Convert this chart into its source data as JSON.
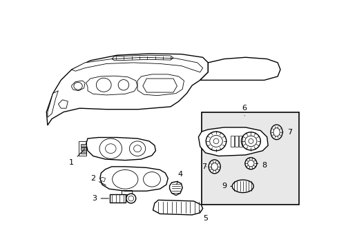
{
  "background_color": "#ffffff",
  "line_color": "#000000",
  "box_bg": "#e8e8e8",
  "figsize": [
    4.89,
    3.6
  ],
  "dpi": 100
}
